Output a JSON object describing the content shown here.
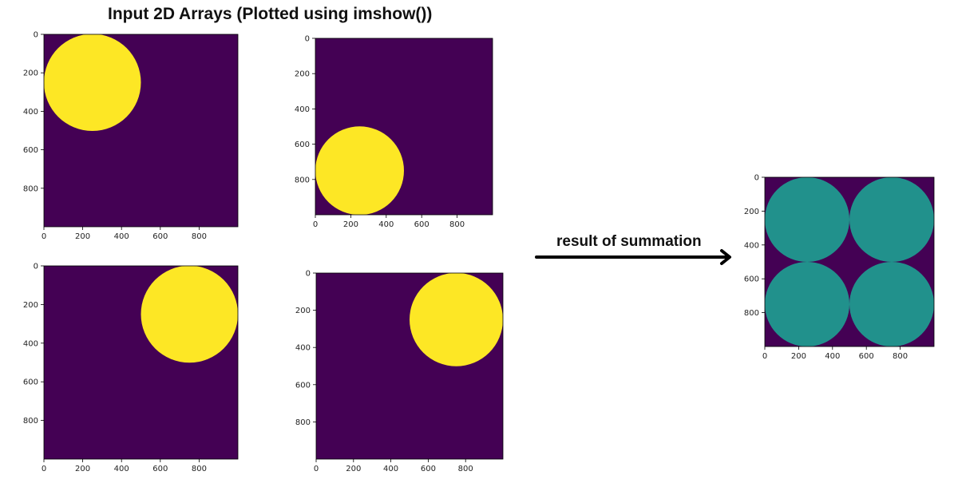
{
  "title": "Input  2D Arrays (Plotted using imshow())",
  "caption": "result  of summation",
  "colors": {
    "background": "#440154",
    "circle": "#fde725",
    "sum": "#21918c",
    "arrow": "#000000"
  },
  "chart_data": [
    {
      "type": "heatmap",
      "name": "input-1",
      "xlim": [
        0,
        1000
      ],
      "ylim": [
        1000,
        0
      ],
      "xticks": [
        0,
        200,
        400,
        600,
        800
      ],
      "yticks": [
        0,
        200,
        400,
        600,
        800
      ],
      "circles": [
        {
          "cx": 250,
          "cy": 250,
          "r": 250,
          "color": "circle"
        }
      ]
    },
    {
      "type": "heatmap",
      "name": "input-2",
      "xlim": [
        0,
        1000
      ],
      "ylim": [
        1000,
        0
      ],
      "xticks": [
        0,
        200,
        400,
        600,
        800
      ],
      "yticks": [
        0,
        200,
        400,
        600,
        800
      ],
      "circles": [
        {
          "cx": 250,
          "cy": 750,
          "r": 250,
          "color": "circle"
        }
      ]
    },
    {
      "type": "heatmap",
      "name": "input-3",
      "xlim": [
        0,
        1000
      ],
      "ylim": [
        1000,
        0
      ],
      "xticks": [
        0,
        200,
        400,
        600,
        800
      ],
      "yticks": [
        0,
        200,
        400,
        600,
        800
      ],
      "circles": [
        {
          "cx": 750,
          "cy": 250,
          "r": 250,
          "color": "circle"
        }
      ]
    },
    {
      "type": "heatmap",
      "name": "input-4",
      "xlim": [
        0,
        1000
      ],
      "ylim": [
        1000,
        0
      ],
      "xticks": [
        0,
        200,
        400,
        600,
        800
      ],
      "yticks": [
        0,
        200,
        400,
        600,
        800
      ],
      "circles": [
        {
          "cx": 750,
          "cy": 250,
          "r": 250,
          "color": "circle"
        }
      ]
    },
    {
      "type": "heatmap",
      "name": "summation-result",
      "xlim": [
        0,
        1000
      ],
      "ylim": [
        1000,
        0
      ],
      "xticks": [
        0,
        200,
        400,
        600,
        800
      ],
      "yticks": [
        0,
        200,
        400,
        600,
        800
      ],
      "circles": [
        {
          "cx": 250,
          "cy": 250,
          "r": 250,
          "color": "sum"
        },
        {
          "cx": 750,
          "cy": 250,
          "r": 250,
          "color": "sum"
        },
        {
          "cx": 250,
          "cy": 750,
          "r": 250,
          "color": "sum"
        },
        {
          "cx": 750,
          "cy": 750,
          "r": 250,
          "color": "sum"
        }
      ]
    }
  ]
}
